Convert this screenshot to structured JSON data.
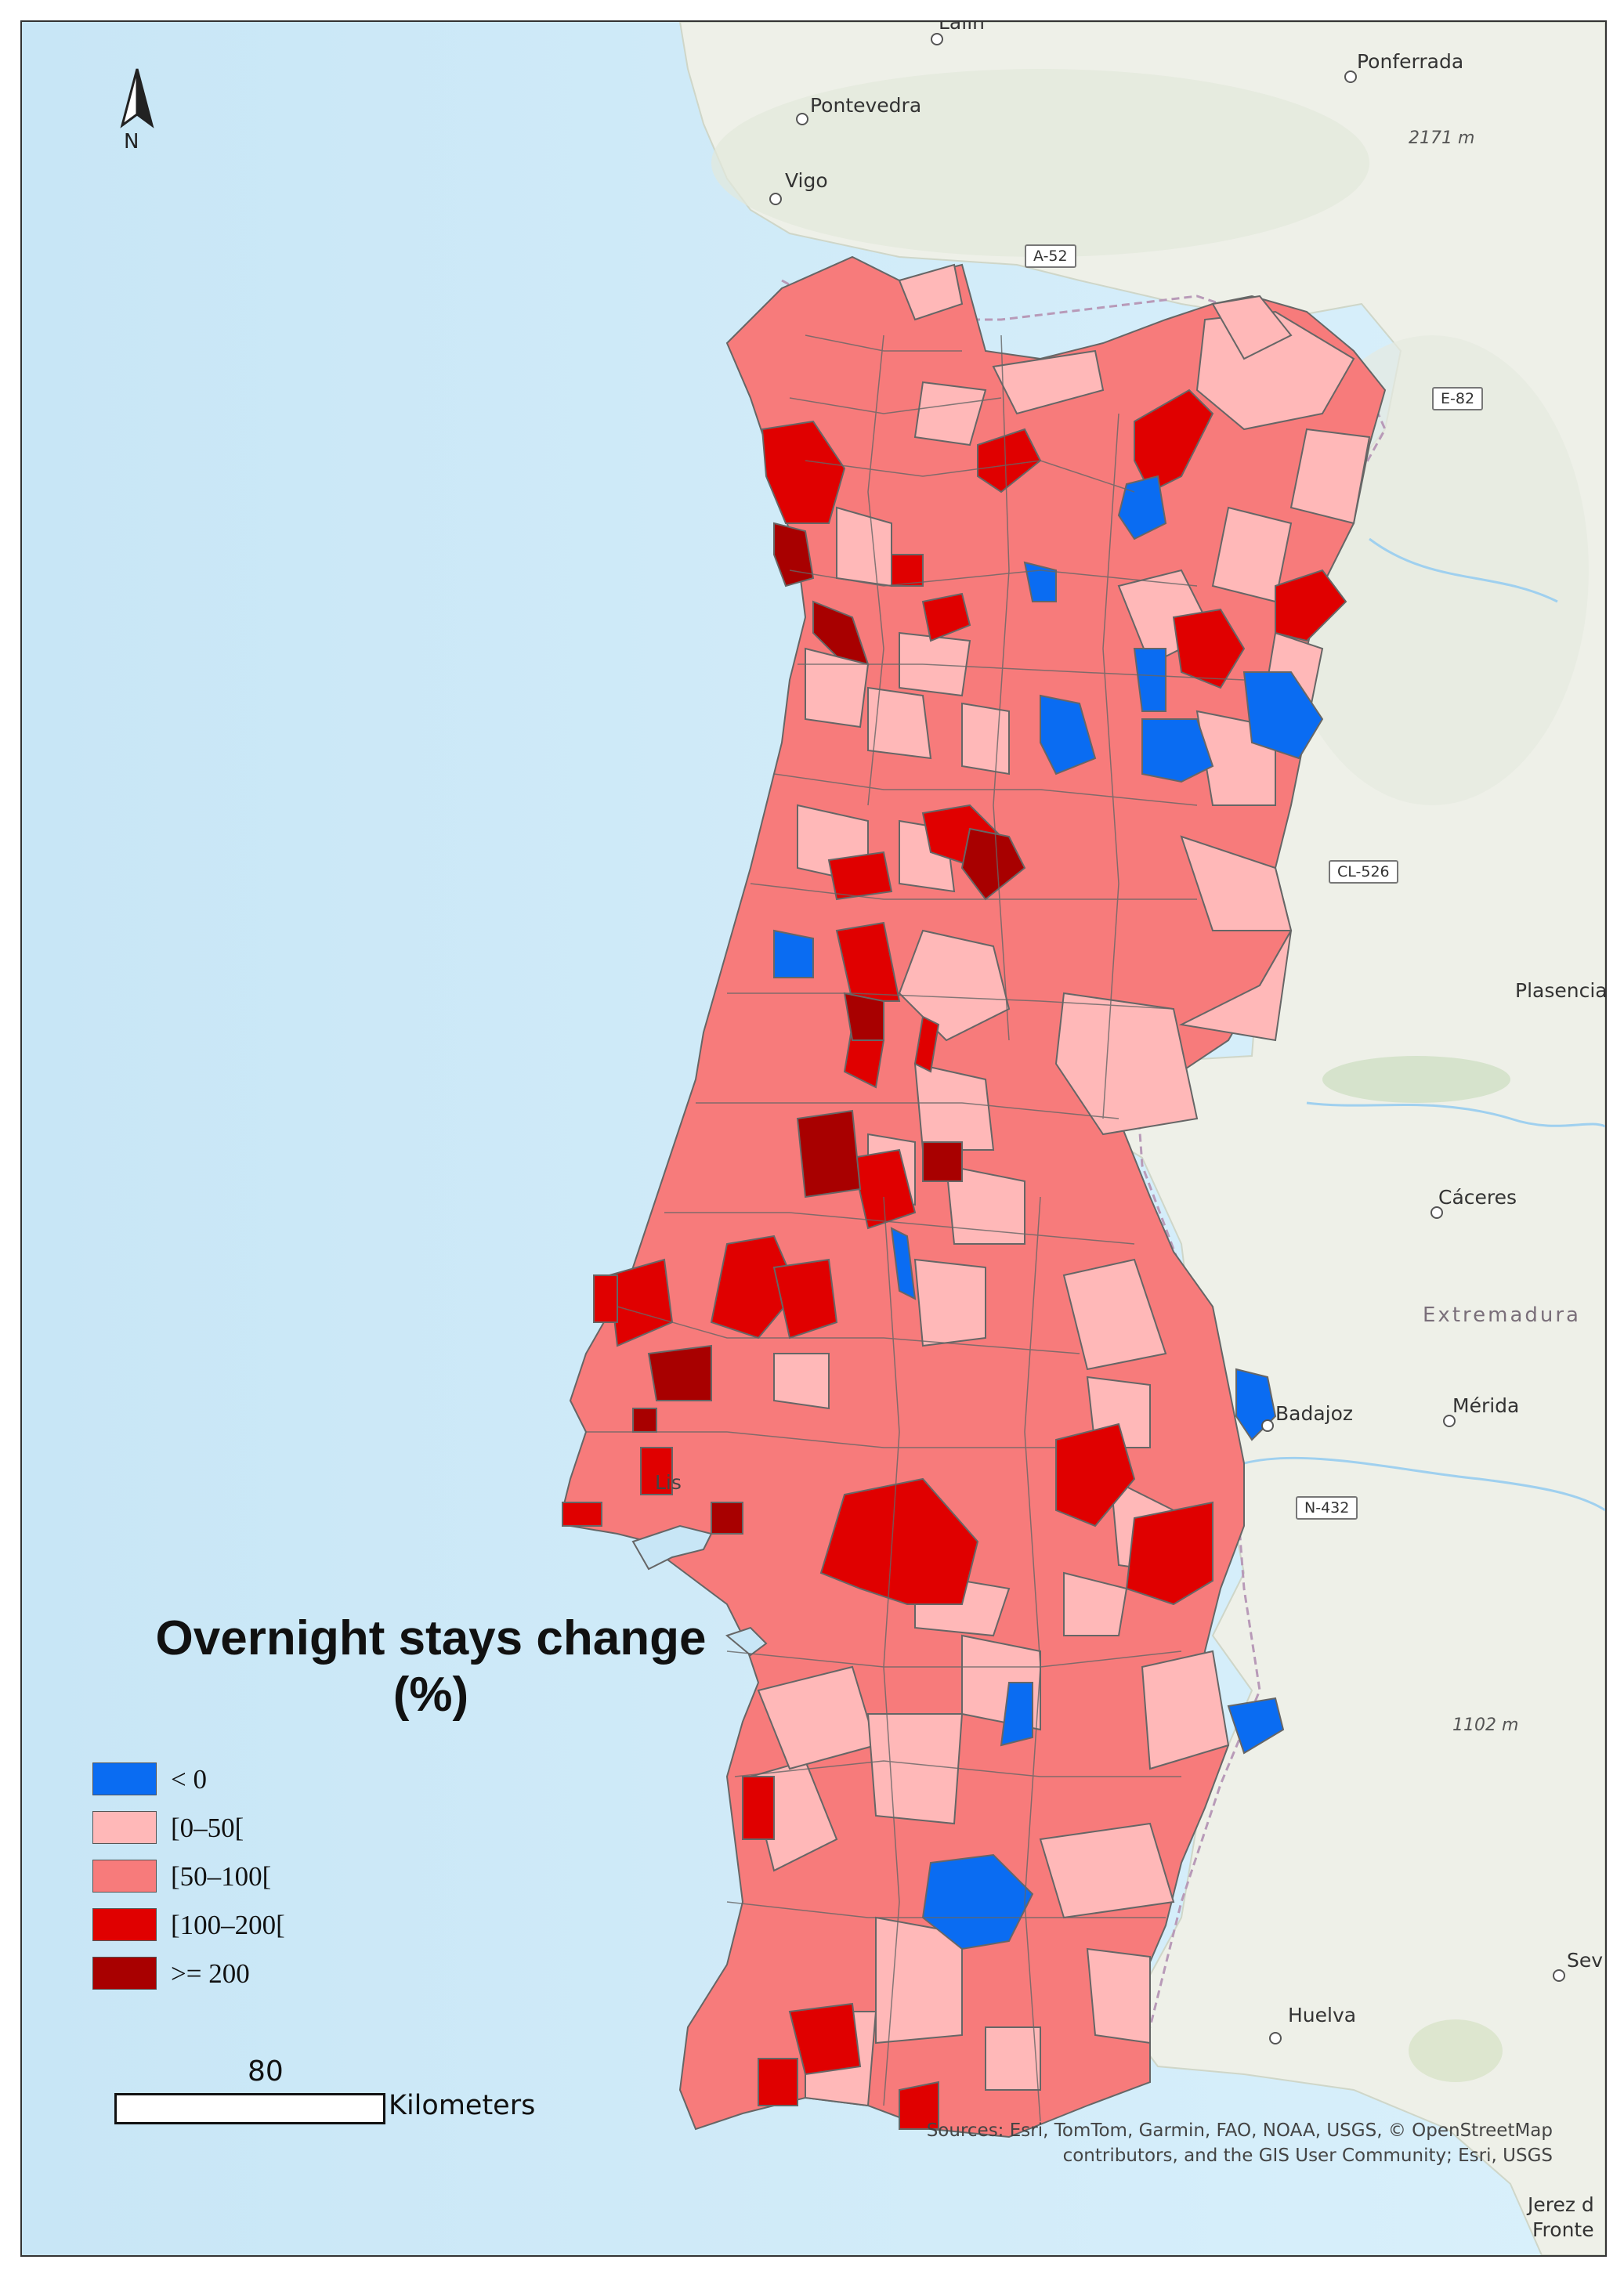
{
  "legend": {
    "title_line1": "Overnight stays change",
    "title_line2": "(%)",
    "classes": [
      {
        "label": "< 0",
        "color": "#0a6cf2"
      },
      {
        "label": "[0–50[",
        "color": "#ffb8b8"
      },
      {
        "label": "[50–100[",
        "color": "#f77b7b"
      },
      {
        "label": "[100–200[",
        "color": "#e00000"
      },
      {
        "label": ">= 200",
        "color": "#a80000"
      }
    ]
  },
  "north_label": "N",
  "scale": {
    "value": "80",
    "unit": "Kilometers"
  },
  "attribution": {
    "line1": "Sources: Esri, TomTom, Garmin, FAO, NOAA, USGS, © OpenStreetMap",
    "line2": "contributors, and the GIS User Community; Esri, USGS"
  },
  "places": {
    "lalin": "Lalin",
    "ponferrada": "Ponferrada",
    "pontevedra": "Pontevedra",
    "vigo": "Vigo",
    "peak1": "2171 m",
    "plasencia": "Plasencia",
    "caceres": "Cáceres",
    "extremadura": "Extremadura",
    "badajoz": "Badajoz",
    "merida": "Mérida",
    "peak2": "1102 m",
    "huelva": "Huelva",
    "sevilla": "Sev",
    "jerez1": "Jerez d",
    "jerez2": "Fronte",
    "lisboa": "Lis"
  },
  "roads": {
    "a52": "A-52",
    "e82": "E-82",
    "cl526": "CL-526",
    "n432": "N-432"
  },
  "colors": {
    "sea": "#d6eefa",
    "land": "#eef0e8",
    "boundary": "#666666"
  }
}
